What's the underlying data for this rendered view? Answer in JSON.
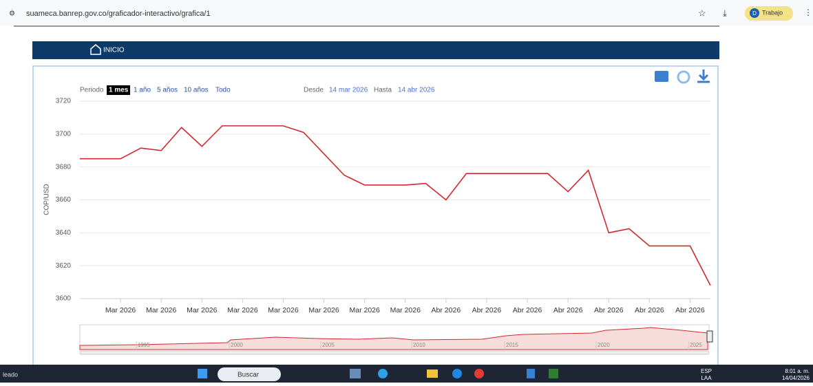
{
  "browser": {
    "url": "suameca.banrep.gov.co/graficador-interactivo/grafica/1",
    "profile_initial": "D",
    "profile_name": "Trabajo"
  },
  "nav": {
    "home": "INICIO"
  },
  "controls": {
    "period_label": "Periodo",
    "periods": [
      "1 mes",
      "1 año",
      "5 años",
      "10 años",
      "Todo"
    ],
    "from_label": "Desde",
    "from": "14 mar 2026",
    "to_label": "Hasta",
    "to": "14 abr 2026"
  },
  "chart_data": {
    "type": "line",
    "y_label": "COP/USD",
    "categories": [
      null,
      null,
      "Mar 2026",
      null,
      "Mar 2026",
      null,
      "Mar 2026",
      null,
      "Mar 2026",
      null,
      "Mar 2026",
      null,
      "Mar 2026",
      null,
      "Mar 2026",
      null,
      "Mar 2026",
      null,
      "Abr 2026",
      null,
      "Abr 2026",
      null,
      "Abr 2026",
      null,
      "Abr 2026",
      null,
      "Abr 2026",
      null,
      "Abr 2026",
      null,
      "Abr 2026",
      null
    ],
    "series": [
      {
        "color": "#d0282c",
        "values": [
          3685,
          3685,
          3685,
          3691.5,
          3690,
          3704,
          3692.5,
          3705,
          3705,
          3705,
          3705,
          3701,
          3688,
          3675,
          3669,
          3669,
          3669,
          3670,
          3660,
          3676,
          3676,
          3676,
          3676,
          3676,
          3665,
          3678,
          3640,
          3642.5,
          3632,
          3632,
          3632,
          3608
        ]
      }
    ],
    "ylim": [
      3600,
      3720
    ],
    "yticks": [
      3600,
      3620,
      3640,
      3660,
      3680,
      3700,
      3720
    ],
    "grid": true
  },
  "navigator": {
    "years": [
      "1995",
      "2000",
      "2005",
      "2010",
      "2015",
      "2020",
      "2025"
    ]
  },
  "taskbar": {
    "left": "leado",
    "search": "Buscar",
    "lang": "ESP",
    "layout": "LAA",
    "time": "8:01 a. m.",
    "date": "14/04/2026"
  }
}
